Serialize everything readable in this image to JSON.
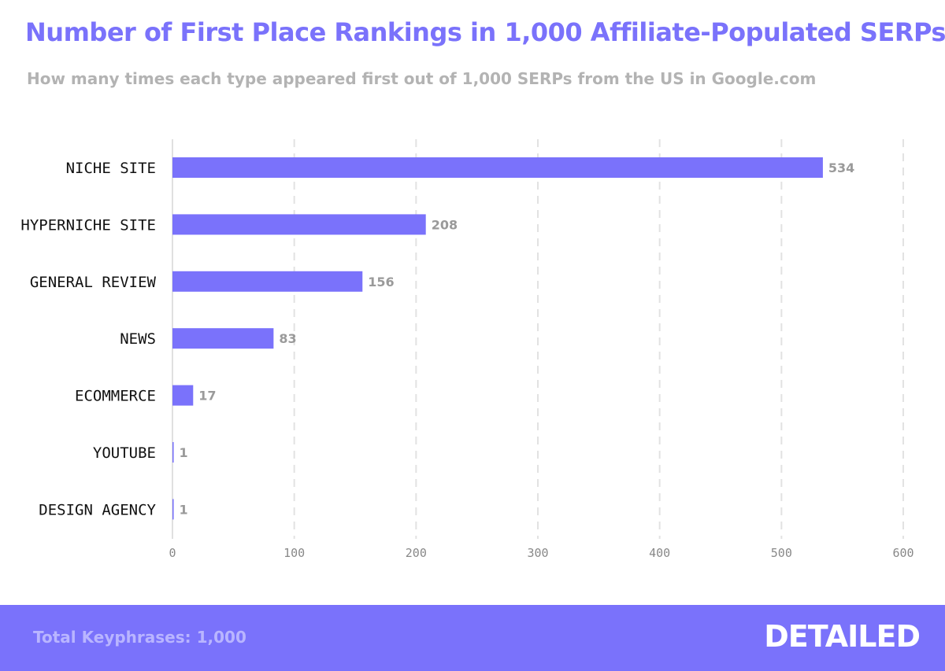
{
  "header": {
    "title": "Number of First Place Rankings in 1,000 Affiliate-Populated SERPs",
    "subtitle": "How many times each type appeared first out of 1,000 SERPs from the US in Google.com"
  },
  "footer": {
    "total_text": "Total Keyphrases: 1,000",
    "brand": "DETAILED"
  },
  "colors": {
    "accent": "#7a72fb",
    "subtitle": "#b3b3b3",
    "grid": "#e2e2e2",
    "value_label": "#9a9a9a"
  },
  "chart_data": {
    "type": "bar",
    "orientation": "horizontal",
    "categories": [
      "NICHE SITE",
      "HYPERNICHE SITE",
      "GENERAL REVIEW",
      "NEWS",
      "ECOMMERCE",
      "YOUTUBE",
      "DESIGN AGENCY"
    ],
    "values": [
      534,
      208,
      156,
      83,
      17,
      1,
      1
    ],
    "value_labels": [
      "534",
      "208",
      "156",
      "83",
      "17",
      "1",
      "1"
    ],
    "xlim": [
      0,
      600
    ],
    "xticks": [
      0,
      100,
      200,
      300,
      400,
      500,
      600
    ],
    "xtick_labels": [
      "0",
      "100",
      "200",
      "300",
      "400",
      "500",
      "600"
    ],
    "grid": true,
    "grid_style": "dashed",
    "legend": "none"
  }
}
